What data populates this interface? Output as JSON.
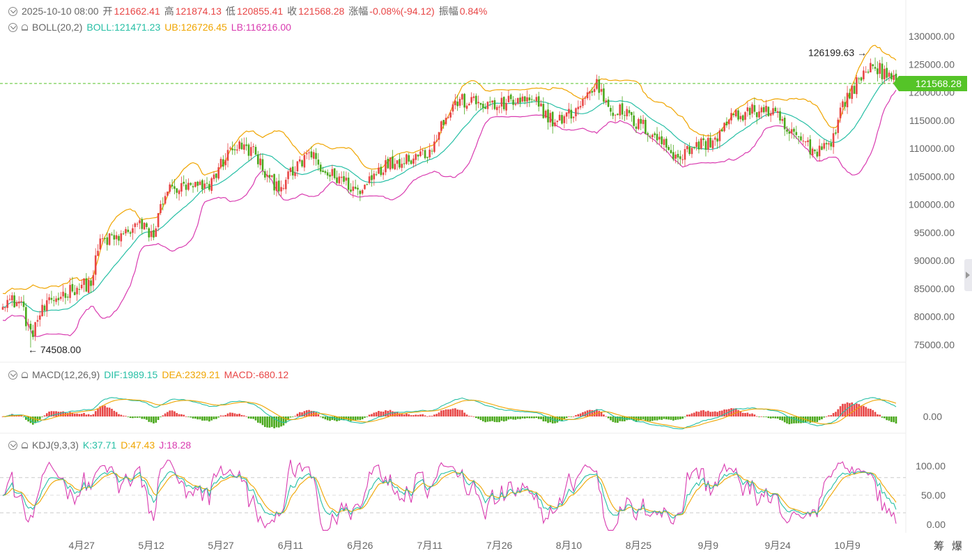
{
  "ohlc_header": {
    "datetime": "2025-10-10 08:00",
    "open_label": "开",
    "open": "121662.41",
    "high_label": "高",
    "high": "121874.13",
    "low_label": "低",
    "low": "120855.41",
    "close_label": "收",
    "close": "121568.28",
    "change_label": "涨幅",
    "change": "-0.08%(-94.12)",
    "amp_label": "振幅",
    "amp": "0.84%"
  },
  "boll_header": {
    "name": "BOLL(20,2)",
    "mid": "BOLL:121471.23",
    "ub": "UB:126726.45",
    "lb": "LB:116216.00"
  },
  "macd_header": {
    "name": "MACD(12,26,9)",
    "dif": "DIF:1989.15",
    "dea": "DEA:2329.21",
    "macd": "MACD:-680.12"
  },
  "kdj_header": {
    "name": "KDJ(9,3,3)",
    "k": "K:37.71",
    "d": "D:47.43",
    "j": "J:18.28"
  },
  "current_price": "121568.28",
  "annotations": {
    "high": "126199.63",
    "low": "74508.00"
  },
  "footer": {
    "icon_a": "筹",
    "icon_b": "爆"
  },
  "colors": {
    "up": "#e84545",
    "down": "#4aa81c",
    "mid": "#26bfa5",
    "ub": "#f0a500",
    "lb": "#d93bb0",
    "dif": "#26bfa5",
    "dea": "#f0a500",
    "price_line": "#55c428"
  },
  "chart_data": {
    "type": "candlestick",
    "x_tick_labels": [
      "4月27",
      "5月12",
      "5月27",
      "6月11",
      "6月26",
      "7月11",
      "7月26",
      "8月10",
      "8月25",
      "9月9",
      "9月24",
      "10月9"
    ],
    "x_tick_index": [
      34,
      64,
      94,
      124,
      154,
      184,
      214,
      244,
      274,
      304,
      334,
      364
    ],
    "n_candles": 386,
    "price_axis": {
      "min": 72000,
      "max": 131000,
      "ticks": [
        75000,
        80000,
        85000,
        90000,
        95000,
        100000,
        105000,
        110000,
        115000,
        120000,
        125000,
        130000
      ],
      "tick_labels": [
        "75000.00",
        "80000.00",
        "85000.00",
        "90000.00",
        "95000.00",
        "100000.00",
        "105000.00",
        "110000.00",
        "115000.00",
        "120000.00",
        "125000.00",
        "130000.00"
      ]
    },
    "macd_axis": {
      "tick_labels": [
        "0.00"
      ]
    },
    "kdj_axis": {
      "ticks": [
        0,
        50,
        100
      ],
      "tick_labels": [
        "0.00",
        "50.00",
        "100.00"
      ]
    },
    "close_keypoints": [
      [
        0,
        83000
      ],
      [
        8,
        82500
      ],
      [
        12,
        76500
      ],
      [
        16,
        80500
      ],
      [
        22,
        83000
      ],
      [
        30,
        85000
      ],
      [
        38,
        86000
      ],
      [
        42,
        93500
      ],
      [
        50,
        94000
      ],
      [
        58,
        96500
      ],
      [
        65,
        94500
      ],
      [
        70,
        102500
      ],
      [
        80,
        103000
      ],
      [
        88,
        103000
      ],
      [
        96,
        108500
      ],
      [
        100,
        110500
      ],
      [
        108,
        109500
      ],
      [
        115,
        104000
      ],
      [
        120,
        103500
      ],
      [
        128,
        107000
      ],
      [
        132,
        109500
      ],
      [
        137,
        106000
      ],
      [
        146,
        104500
      ],
      [
        154,
        102000
      ],
      [
        160,
        106000
      ],
      [
        168,
        107500
      ],
      [
        176,
        108500
      ],
      [
        184,
        109500
      ],
      [
        188,
        113500
      ],
      [
        196,
        118500
      ],
      [
        206,
        118000
      ],
      [
        212,
        117500
      ],
      [
        222,
        118500
      ],
      [
        230,
        118000
      ],
      [
        238,
        114500
      ],
      [
        246,
        116500
      ],
      [
        252,
        119500
      ],
      [
        256,
        121500
      ],
      [
        262,
        117000
      ],
      [
        268,
        116500
      ],
      [
        272,
        114500
      ],
      [
        276,
        114000
      ],
      [
        282,
        112000
      ],
      [
        288,
        109500
      ],
      [
        292,
        108500
      ],
      [
        298,
        110500
      ],
      [
        304,
        111000
      ],
      [
        308,
        112000
      ],
      [
        314,
        115500
      ],
      [
        322,
        116500
      ],
      [
        328,
        117000
      ],
      [
        334,
        115500
      ],
      [
        338,
        113000
      ],
      [
        344,
        111500
      ],
      [
        350,
        109500
      ],
      [
        354,
        110500
      ],
      [
        358,
        112000
      ],
      [
        362,
        118000
      ],
      [
        368,
        121500
      ],
      [
        372,
        124000
      ],
      [
        376,
        125000
      ],
      [
        380,
        123000
      ],
      [
        385,
        121568
      ]
    ]
  }
}
